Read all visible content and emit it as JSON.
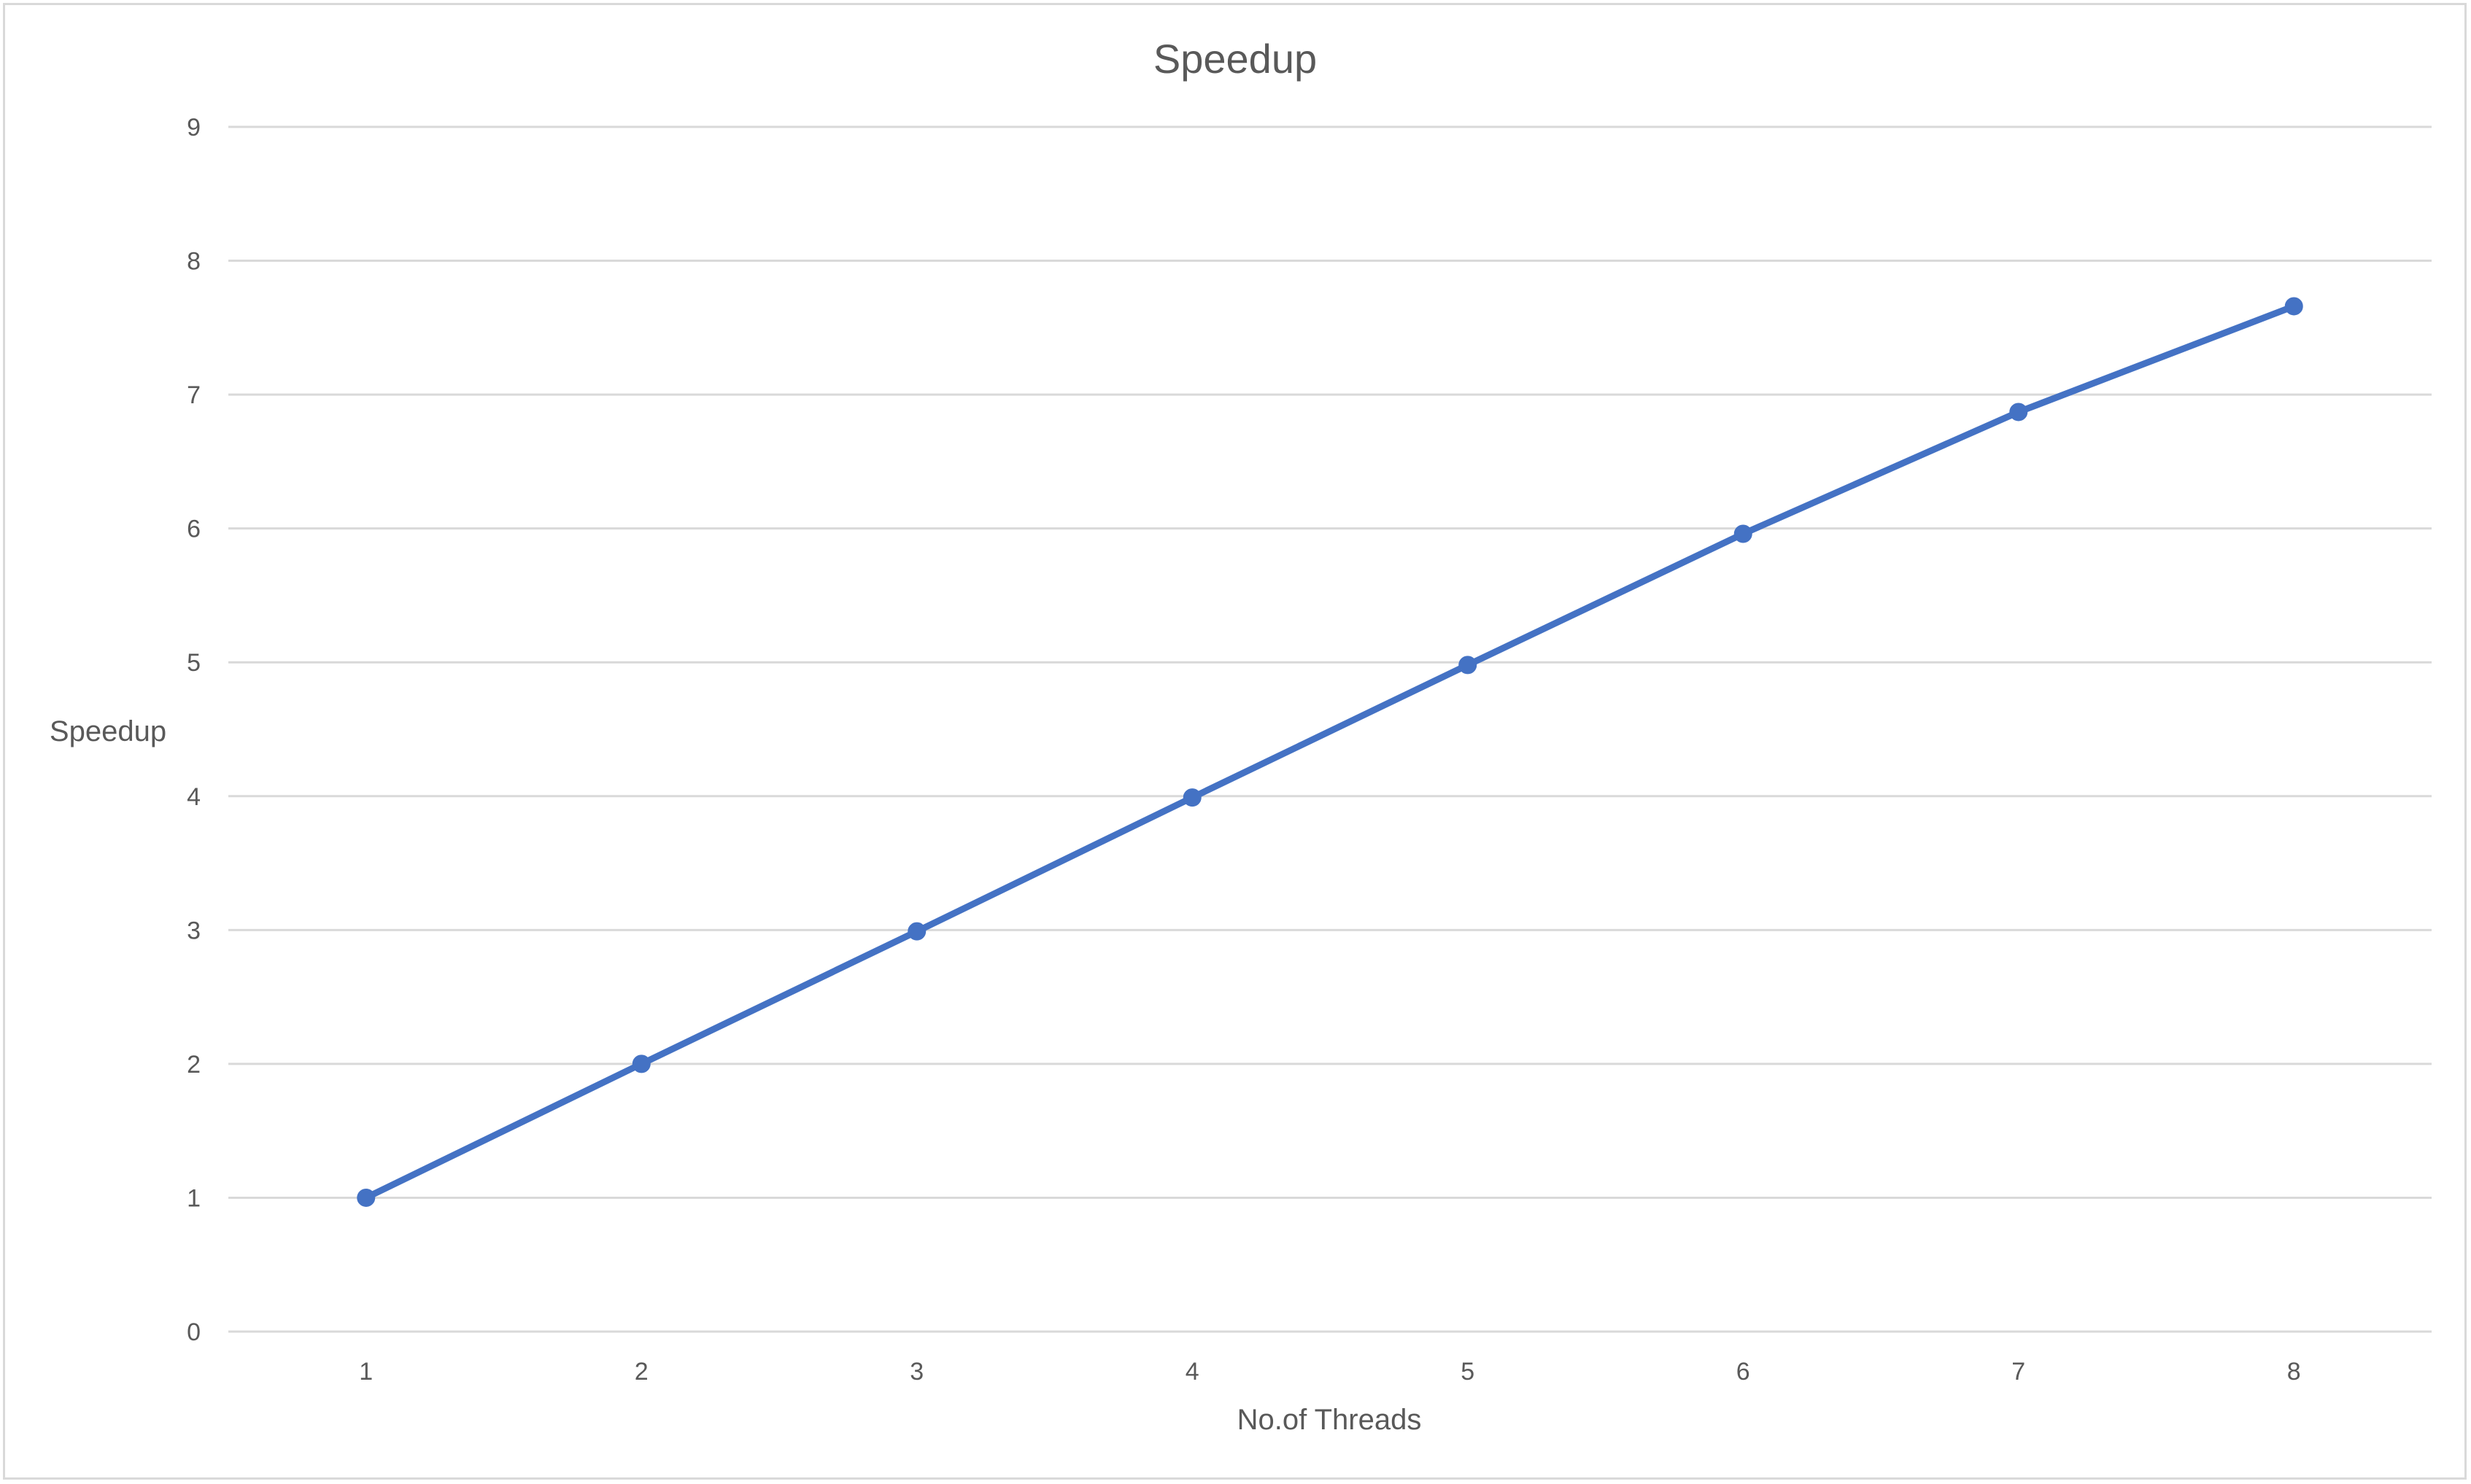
{
  "chart_data": {
    "type": "line",
    "title": "Speedup",
    "xlabel": "No.of Threads",
    "ylabel": "Speedup",
    "categories": [
      "1",
      "2",
      "3",
      "4",
      "5",
      "6",
      "7",
      "8"
    ],
    "x": [
      1,
      2,
      3,
      4,
      5,
      6,
      7,
      8
    ],
    "series": [
      {
        "values": [
          1.0,
          2.0,
          2.99,
          3.99,
          4.98,
          5.96,
          6.87,
          7.66
        ],
        "color": "#4472c4"
      }
    ],
    "ylim": [
      0,
      9
    ],
    "yticks": [
      "0",
      "1",
      "2",
      "3",
      "4",
      "5",
      "6",
      "7",
      "8",
      "9"
    ],
    "grid": true,
    "legend": "none"
  }
}
